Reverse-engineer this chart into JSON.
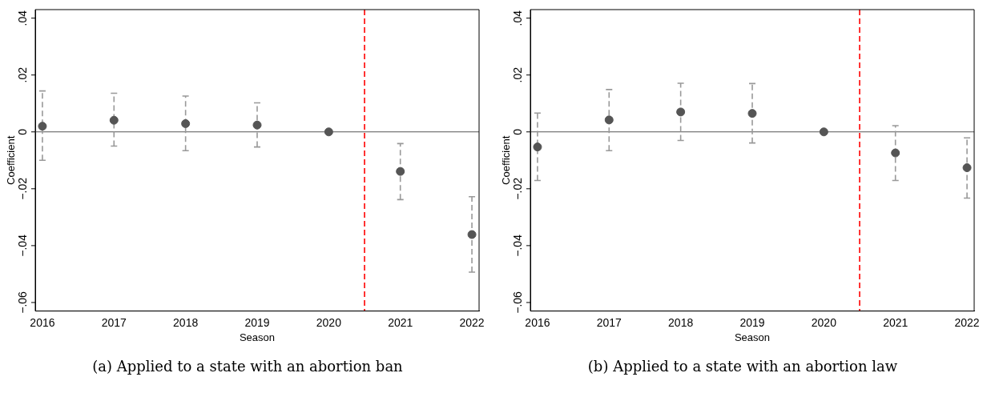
{
  "chart_data": [
    {
      "type": "scatter",
      "xlabel": "Season",
      "ylabel": "Coefficient",
      "marker": "circle",
      "x": [
        2016,
        2017,
        2018,
        2019,
        2020,
        2021,
        2022
      ],
      "series": [
        {
          "color": "#555555",
          "values": [
            0.002,
            0.0041,
            0.0029,
            0.0024,
            0,
            -0.0139,
            -0.0361
          ],
          "errors": [
            [
              -0.01,
              0.0144
            ],
            [
              -0.005,
              0.0136
            ],
            [
              -0.0066,
              0.0126
            ],
            [
              -0.0053,
              0.0102
            ],
            null,
            [
              -0.0238,
              -0.0041
            ],
            [
              -0.0493,
              -0.0228
            ]
          ]
        }
      ],
      "xlim": [
        2015.9,
        2022.1
      ],
      "xticks": [
        2016,
        2017,
        2018,
        2019,
        2020,
        2021,
        2022
      ],
      "ylim": [
        -0.063,
        0.043
      ],
      "yticks": [
        {
          "value": -0.06,
          "label": "−.06"
        },
        {
          "value": -0.04,
          "label": "−.04"
        },
        {
          "value": -0.02,
          "label": "−.02"
        },
        0,
        {
          "value": 0.02,
          "label": ".02"
        },
        {
          "value": 0.04,
          "label": ".04"
        }
      ],
      "ref_lines": [
        {
          "axis": "y",
          "value": 0,
          "color": "#555555",
          "line_style": "solid"
        },
        {
          "axis": "x",
          "value": 2020.5,
          "color": "#ff0000",
          "line_style": "dashed"
        }
      ],
      "annotations": [
        "(a) Applied to a state with an abortion ban"
      ]
    },
    {
      "type": "scatter",
      "xlabel": "Season",
      "ylabel": "Coefficient",
      "marker": "circle",
      "x": [
        2016,
        2017,
        2018,
        2019,
        2020,
        2021,
        2022
      ],
      "series": [
        {
          "color": "#555555",
          "values": [
            -0.0053,
            0.0042,
            0.007,
            0.0065,
            0,
            -0.0074,
            -0.0126
          ],
          "errors": [
            [
              -0.0171,
              0.0066
            ],
            [
              -0.0066,
              0.0149
            ],
            [
              -0.003,
              0.0171
            ],
            [
              -0.0039,
              0.017
            ],
            null,
            [
              -0.0171,
              0.0022
            ],
            [
              -0.0233,
              -0.0021
            ]
          ]
        }
      ],
      "xlim": [
        2015.9,
        2022.1
      ],
      "xticks": [
        2016,
        2017,
        2018,
        2019,
        2020,
        2021,
        2022
      ],
      "ylim": [
        -0.063,
        0.043
      ],
      "yticks": [
        {
          "value": -0.06,
          "label": "−.06"
        },
        {
          "value": -0.04,
          "label": "−.04"
        },
        {
          "value": -0.02,
          "label": "−.02"
        },
        0,
        {
          "value": 0.02,
          "label": ".02"
        },
        {
          "value": 0.04,
          "label": ".04"
        }
      ],
      "ref_lines": [
        {
          "axis": "y",
          "value": 0,
          "color": "#555555",
          "line_style": "solid"
        },
        {
          "axis": "x",
          "value": 2020.5,
          "color": "#ff0000",
          "line_style": "dashed"
        }
      ],
      "annotations": [
        "(b) Applied to a state with an abortion law"
      ]
    }
  ]
}
